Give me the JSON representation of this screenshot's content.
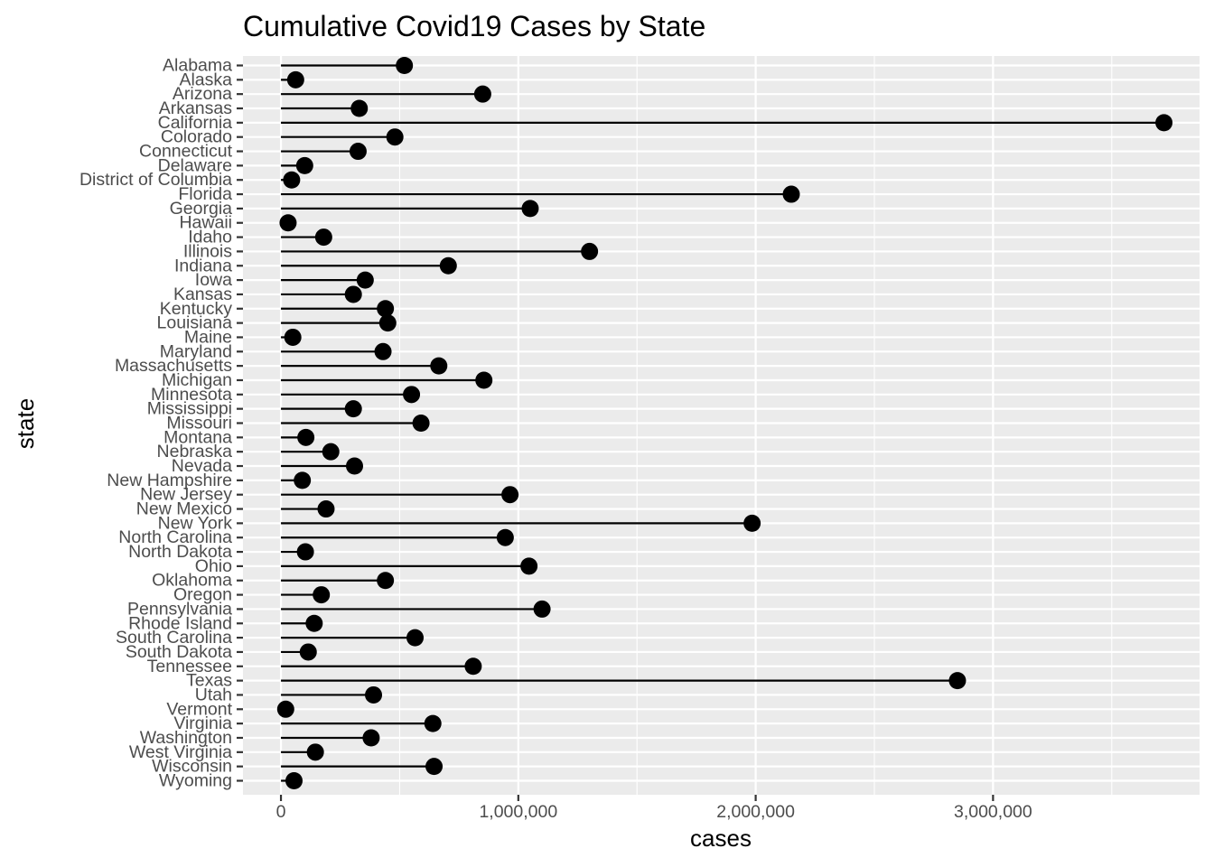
{
  "chart_data": {
    "type": "lollipop",
    "title": "Cumulative Covid19 Cases by State",
    "xlabel": "cases",
    "ylabel": "state",
    "xlim": [
      -160000,
      3870000
    ],
    "x_ticks": [
      0,
      1000000,
      2000000,
      3000000
    ],
    "x_tick_labels": [
      "0",
      "1,000,000",
      "2,000,000",
      "3,000,000"
    ],
    "grid": true,
    "legend": "none",
    "colors": {
      "panel": "#ebebeb",
      "grid": "#ffffff",
      "mark": "#000000",
      "tick_text": "#4d4d4d"
    },
    "categories": [
      "Alabama",
      "Alaska",
      "Arizona",
      "Arkansas",
      "California",
      "Colorado",
      "Connecticut",
      "Delaware",
      "District of Columbia",
      "Florida",
      "Georgia",
      "Hawaii",
      "Idaho",
      "Illinois",
      "Indiana",
      "Iowa",
      "Kansas",
      "Kentucky",
      "Louisiana",
      "Maine",
      "Maryland",
      "Massachusetts",
      "Michigan",
      "Minnesota",
      "Mississippi",
      "Missouri",
      "Montana",
      "Nebraska",
      "Nevada",
      "New Hampshire",
      "New Jersey",
      "New Mexico",
      "New York",
      "North Carolina",
      "North Dakota",
      "Ohio",
      "Oklahoma",
      "Oregon",
      "Pennsylvania",
      "Rhode Island",
      "South Carolina",
      "South Dakota",
      "Tennessee",
      "Texas",
      "Utah",
      "Vermont",
      "Virginia",
      "Washington",
      "West Virginia",
      "Wisconsin",
      "Wyoming"
    ],
    "values": [
      520000,
      62000,
      850000,
      330000,
      3720000,
      480000,
      325000,
      100000,
      45000,
      2150000,
      1050000,
      30000,
      180000,
      1300000,
      705000,
      355000,
      305000,
      440000,
      450000,
      50000,
      430000,
      665000,
      855000,
      550000,
      305000,
      590000,
      105000,
      210000,
      310000,
      90000,
      965000,
      190000,
      1985000,
      945000,
      103000,
      1045000,
      440000,
      170000,
      1100000,
      140000,
      565000,
      115000,
      810000,
      2850000,
      390000,
      20000,
      640000,
      380000,
      145000,
      645000,
      55000
    ]
  }
}
